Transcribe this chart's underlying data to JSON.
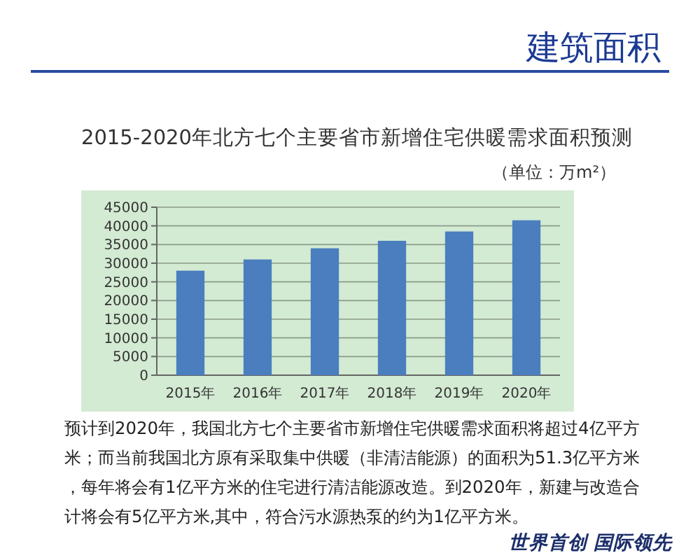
{
  "chart_data": {
    "type": "bar",
    "title": "2015-2020年北方七个主要省市新增住宅供暖需求面积预测",
    "subtitle": "（单位：万m²）",
    "categories": [
      "2015年",
      "2016年",
      "2017年",
      "2018年",
      "2019年",
      "2020年"
    ],
    "values": [
      28000,
      31000,
      34000,
      36000,
      38500,
      41500
    ],
    "color": "#4a7ebf",
    "ylim": [
      0,
      45000
    ],
    "yticks": [
      0,
      5000,
      10000,
      15000,
      20000,
      25000,
      30000,
      35000,
      40000,
      45000
    ],
    "grid": "y",
    "annotations": [
      "建筑面积",
      "预计到2020年，我国北方七个主要省市新增住宅供暖需求面积将超过4亿平方米；而当前我国北方原有采取集中供暖（非清洁能源）的面积为51.3亿平方米，每年将会有1亿平方米的住宅进行清洁能源改造。到2020年，新建与改造合计将会有5亿平方米,其中，符合污水源热泵的约为1亿平方米。",
      "世界首创  国际领先"
    ]
  }
}
